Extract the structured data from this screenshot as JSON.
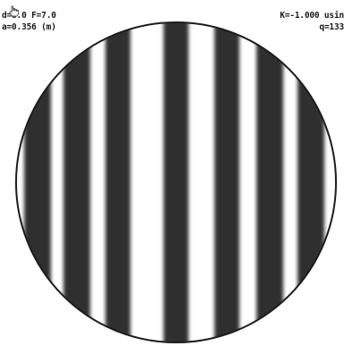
{
  "readout": {
    "d": "d=8.0",
    "f": "F=7.0",
    "a": "a=0.356 (m)",
    "k": "K=-1.000 usin",
    "q": "q=133"
  },
  "interferogram": {
    "fringe_dark_color": "#2f2f2f",
    "fringe_light_color": "#ffffff",
    "rim_color": "#1c1c1c"
  },
  "icons": {
    "cursor": "hand-pointer-icon"
  }
}
